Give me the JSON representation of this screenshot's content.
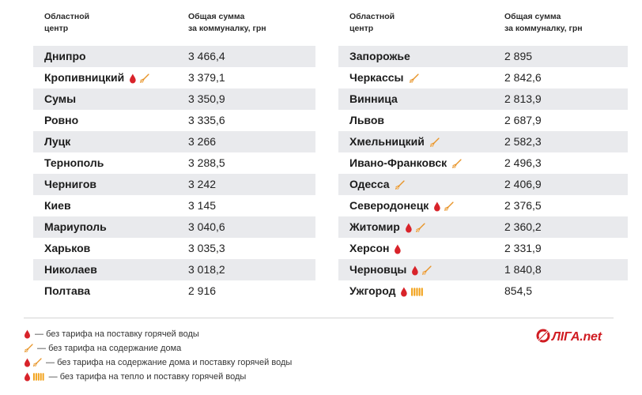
{
  "header": {
    "col_city": "Областной\nцентр",
    "col_sum": "Общая сумма\nза коммуналку, грн"
  },
  "left_rows": [
    {
      "city": "Днипро",
      "value": "3 466,4",
      "icons": []
    },
    {
      "city": "Кропивницкий",
      "value": "3 379,1",
      "icons": [
        "drop",
        "broom"
      ]
    },
    {
      "city": "Сумы",
      "value": "3 350,9",
      "icons": []
    },
    {
      "city": "Ровно",
      "value": "3 335,6",
      "icons": []
    },
    {
      "city": "Луцк",
      "value": "3 266",
      "icons": []
    },
    {
      "city": "Тернополь",
      "value": "3 288,5",
      "icons": []
    },
    {
      "city": "Чернигов",
      "value": "3 242",
      "icons": []
    },
    {
      "city": "Киев",
      "value": "3 145",
      "icons": []
    },
    {
      "city": "Мариуполь",
      "value": "3 040,6",
      "icons": []
    },
    {
      "city": "Харьков",
      "value": "3 035,3",
      "icons": []
    },
    {
      "city": "Николаев",
      "value": "3 018,2",
      "icons": []
    },
    {
      "city": "Полтава",
      "value": "2 916",
      "icons": []
    }
  ],
  "right_rows": [
    {
      "city": "Запорожье",
      "value": "2 895",
      "icons": []
    },
    {
      "city": "Черкассы",
      "value": "2 842,6",
      "icons": [
        "broom"
      ]
    },
    {
      "city": "Винница",
      "value": "2 813,9",
      "icons": []
    },
    {
      "city": "Львов",
      "value": "2 687,9",
      "icons": []
    },
    {
      "city": "Хмельницкий",
      "value": "2 582,3",
      "icons": [
        "broom"
      ]
    },
    {
      "city": "Ивано-Франковск",
      "value": "2 496,3",
      "icons": [
        "broom"
      ]
    },
    {
      "city": "Одесса",
      "value": "2 406,9",
      "icons": [
        "broom"
      ]
    },
    {
      "city": "Северодонецк",
      "value": "2 376,5",
      "icons": [
        "drop",
        "broom"
      ]
    },
    {
      "city": "Житомир",
      "value": "2 360,2",
      "icons": [
        "drop",
        "broom"
      ]
    },
    {
      "city": "Херсон",
      "value": "2 331,9",
      "icons": [
        "drop"
      ]
    },
    {
      "city": "Черновцы",
      "value": "1 840,8",
      "icons": [
        "drop",
        "broom"
      ]
    },
    {
      "city": "Ужгород",
      "value": "854,5",
      "icons": [
        "drop",
        "radiator"
      ]
    }
  ],
  "legend": [
    {
      "icons": [
        "drop"
      ],
      "text": "— без тарифа на поставку горячей воды"
    },
    {
      "icons": [
        "broom"
      ],
      "text": "— без тарифа на содержание дома"
    },
    {
      "icons": [
        "drop",
        "broom"
      ],
      "text": "— без тарифа на содержание дома и поставку горячей воды"
    },
    {
      "icons": [
        "drop",
        "radiator"
      ],
      "text": "— без тарифа на тепло и поставку горячей воды"
    }
  ],
  "logo": {
    "text": "ЛІГА.net"
  },
  "colors": {
    "stripe": "#e9eaed",
    "drop": "#d8232a",
    "broom": "#e8952a",
    "radiator": "#f2a21b",
    "logo": "#d01c22"
  }
}
